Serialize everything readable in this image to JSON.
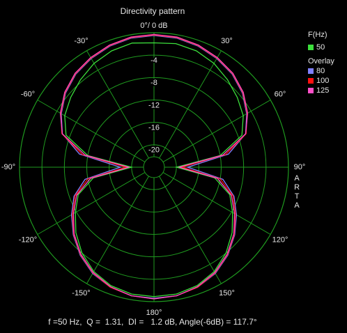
{
  "chart_data": {
    "type": "polar",
    "title": "Directivity pattern",
    "x": [
      -180,
      -170,
      -160,
      -150,
      -140,
      -130,
      -120,
      -110,
      -100,
      -90,
      -80,
      -70,
      -60,
      -50,
      -40,
      -30,
      -20,
      -10,
      0,
      10,
      20,
      30,
      40,
      50,
      60,
      70,
      80,
      90,
      100,
      110,
      120,
      130,
      140,
      150,
      160,
      170,
      180
    ],
    "series": [
      {
        "name": "50",
        "color": "#3ce03c",
        "values": [
          -0.9,
          -1.0,
          -1.5,
          -2.5,
          -4.0,
          -5.8,
          -7.8,
          -9.6,
          -13,
          -20,
          -12,
          -7.3,
          -5.6,
          -4.6,
          -3.6,
          -2.6,
          -1.9,
          -1.5,
          -1.8,
          -1.6,
          -1.9,
          -2.6,
          -3.6,
          -4.6,
          -5.6,
          -7.3,
          -12,
          -20,
          -13,
          -9.6,
          -7.8,
          -5.8,
          -4.0,
          -2.5,
          -1.5,
          -1.0,
          -0.9
        ]
      },
      {
        "name": "80",
        "color": "#8080ff",
        "values": [
          -0.6,
          -0.7,
          -1.2,
          -2.1,
          -3.5,
          -5.2,
          -7.0,
          -8.8,
          -11.5,
          -18,
          -10.5,
          -6.6,
          -4.9,
          -3.4,
          -2.3,
          -1.6,
          -1.0,
          -0.6,
          -0.5,
          -0.6,
          -1.0,
          -1.6,
          -2.3,
          -3.4,
          -4.9,
          -6.6,
          -10.5,
          -18,
          -11.5,
          -8.8,
          -7.0,
          -5.2,
          -3.5,
          -2.1,
          -1.2,
          -0.7,
          -0.6
        ]
      },
      {
        "name": "100",
        "color": "#ff1010",
        "values": [
          -0.5,
          -0.7,
          -1.2,
          -2.2,
          -3.6,
          -5.3,
          -7.2,
          -9,
          -12,
          -19,
          -11,
          -6.5,
          -4.8,
          -3.3,
          -2.2,
          -1.5,
          -0.9,
          -0.5,
          -0.4,
          -0.5,
          -0.9,
          -1.5,
          -2.2,
          -3.3,
          -4.8,
          -6.5,
          -11,
          -19,
          -12,
          -9,
          -7.2,
          -5.3,
          -3.6,
          -2.2,
          -1.2,
          -0.7,
          -0.5
        ]
      },
      {
        "name": "125",
        "color": "#ff50c8",
        "values": [
          -0.5,
          -0.7,
          -1.3,
          -2.3,
          -3.7,
          -5.4,
          -7.4,
          -9.3,
          -12.5,
          -19.5,
          -11.5,
          -6.6,
          -4.7,
          -3.2,
          -2.1,
          -1.4,
          -0.8,
          -0.4,
          -0.3,
          -0.4,
          -0.8,
          -1.4,
          -2.1,
          -3.2,
          -4.7,
          -6.6,
          -11.5,
          -19.5,
          -12.5,
          -9.3,
          -7.4,
          -5.4,
          -3.7,
          -2.3,
          -1.3,
          -0.7,
          -0.5
        ]
      }
    ],
    "rlim": [
      -24,
      0
    ],
    "rticks": [
      -4,
      -8,
      -12,
      -16,
      -20
    ],
    "xticks": [
      {
        "value": 0,
        "label": "0°/ 0 dB"
      },
      {
        "value": 30,
        "label": "30°"
      },
      {
        "value": 60,
        "label": "60°"
      },
      {
        "value": 90,
        "label": "90°"
      },
      {
        "value": 120,
        "label": "120°"
      },
      {
        "value": 150,
        "label": "150°"
      },
      {
        "value": 180,
        "label": "180°"
      },
      {
        "value": -150,
        "label": "-150°"
      },
      {
        "value": -120,
        "label": "-120°"
      },
      {
        "value": -90,
        "label": "-90°"
      },
      {
        "value": -60,
        "label": "-60°"
      },
      {
        "value": -30,
        "label": "-30°"
      }
    ],
    "legend_title": "F(Hz)",
    "overlay_title": "Overlay",
    "watermark": "ARTA",
    "footer": "f =50 Hz,  Q =  1.31,  DI =   1.2 dB, Angle(-6dB) = 117.7°",
    "grid_color": "#1f9a1f"
  }
}
